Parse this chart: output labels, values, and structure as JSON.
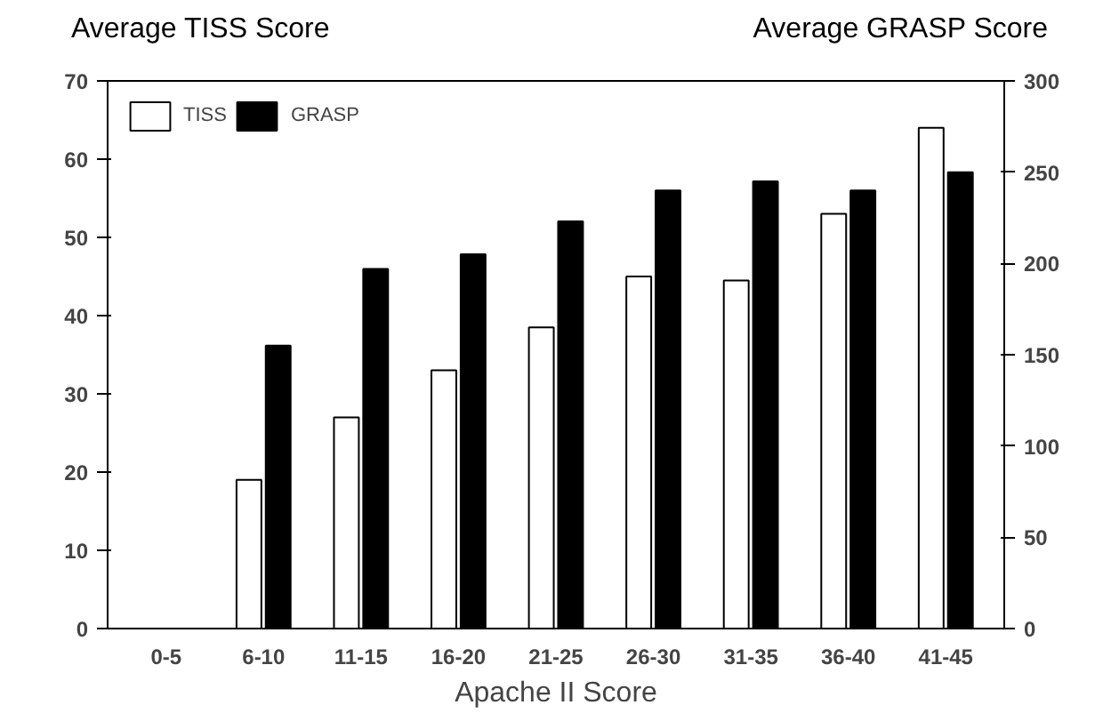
{
  "chart_data": {
    "type": "bar",
    "xlabel": "Apache II Score",
    "ylabel": "Average TISS Score",
    "y2label": "Average GRASP Score",
    "categories": [
      "0-5",
      "6-10",
      "11-15",
      "16-20",
      "21-25",
      "26-30",
      "31-35",
      "36-40",
      "41-45"
    ],
    "series": [
      {
        "name": "TISS",
        "color": "#ffffff",
        "values": [
          null,
          19,
          27,
          33,
          38.5,
          45,
          44.5,
          53,
          64
        ]
      },
      {
        "name": "GRASP",
        "color": "#000000",
        "axis": "y2",
        "values": [
          null,
          155,
          197,
          205,
          223,
          240,
          245,
          240,
          250
        ]
      }
    ],
    "ylim": [
      0,
      70
    ],
    "yticks": [
      0,
      10,
      20,
      30,
      40,
      50,
      60,
      70
    ],
    "y2lim": [
      0,
      300
    ],
    "y2ticks": [
      0,
      50,
      100,
      150,
      200,
      250,
      300
    ],
    "legend": "top left",
    "grid": false
  }
}
